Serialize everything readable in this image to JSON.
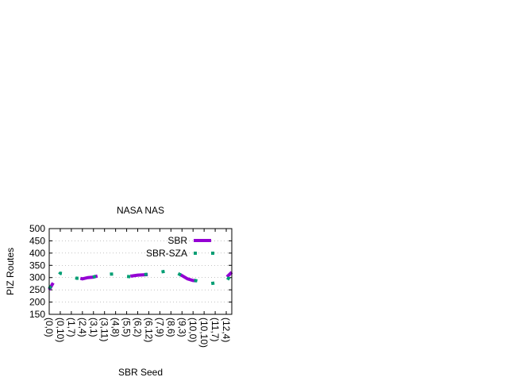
{
  "chart_data": {
    "type": "line",
    "title": "NASA NAS",
    "x_label": "SBR Seed",
    "y_label": "PIZ Routes",
    "categories": [
      "(0,0)",
      null,
      "(0,10)",
      null,
      "(1,7)",
      null,
      "(2,4)",
      null,
      "(3,1)",
      null,
      "(3,11)",
      null,
      "(4,8)",
      null,
      "(5,5)",
      null,
      "(6,2)",
      null,
      "(6,12)",
      null,
      "(7,9)",
      null,
      "(8,6)",
      null,
      "(9,3)",
      null,
      "(10,0)",
      null,
      "(10,10)",
      null,
      "(11,7)",
      null,
      "(12,4)",
      null
    ],
    "series": [
      {
        "name": "SBR",
        "color": "#9400d3",
        "values": [
          250,
          290,
          318,
          320,
          310,
          300,
          295,
          300,
          302,
          308,
          312,
          313,
          314,
          312,
          305,
          307,
          310,
          311,
          312,
          318,
          322,
          325,
          328,
          320,
          308,
          295,
          288,
          286,
          282,
          275,
          278,
          282,
          300,
          322
        ]
      },
      {
        "name": "SBR-SZA",
        "color": "#009e73",
        "values": [
          255,
          290,
          318,
          315,
          305,
          297,
          298,
          300,
          303,
          308,
          312,
          314,
          315,
          312,
          305,
          303,
          308,
          312,
          314,
          318,
          322,
          326,
          330,
          320,
          308,
          300,
          290,
          285,
          280,
          275,
          278,
          280,
          283,
          318
        ]
      }
    ],
    "ylim": [
      150,
      500
    ],
    "yticks": [
      150,
      200,
      250,
      300,
      350,
      400,
      450,
      500
    ],
    "grid": true,
    "legend": "top-right"
  }
}
